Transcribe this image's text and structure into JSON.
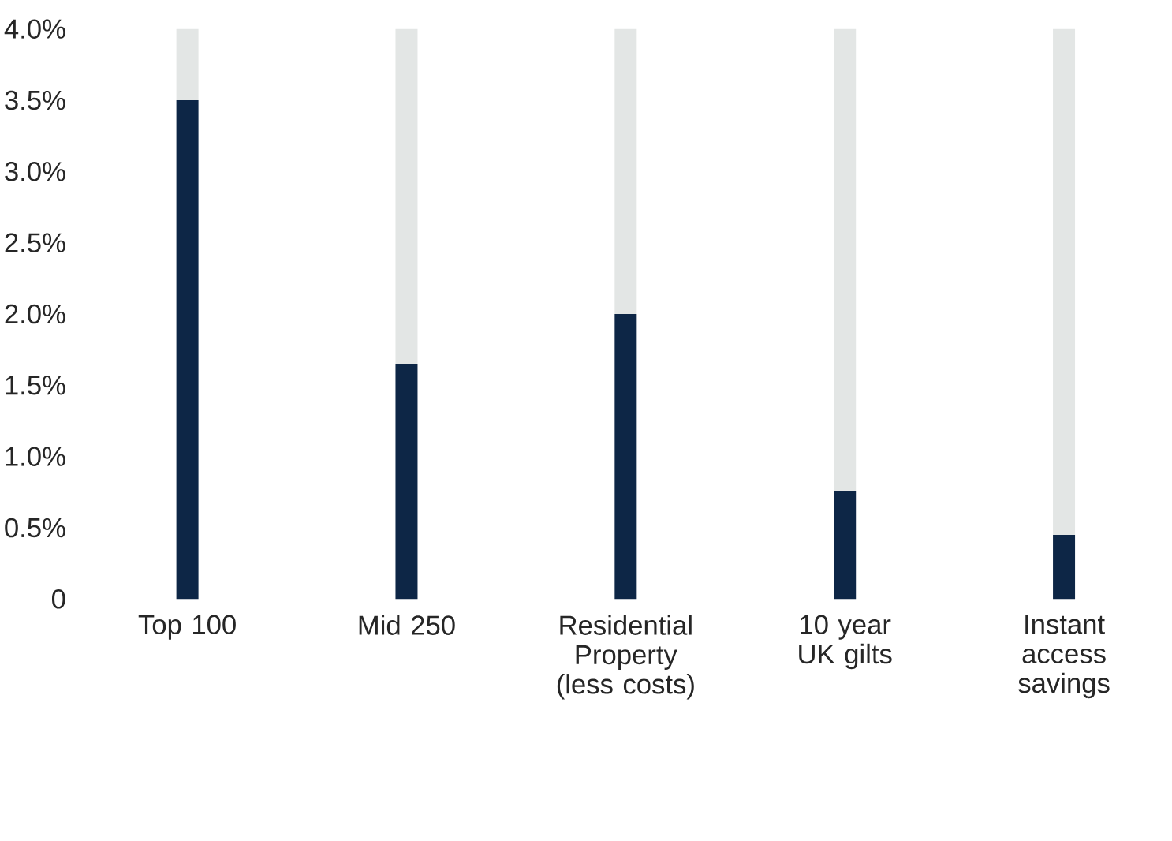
{
  "chart_data": {
    "type": "bar",
    "stacked": true,
    "categories": [
      "Top 100",
      "Mid 250",
      "Residential Property (less costs)",
      "10 year UK gilts",
      "Instant access savings"
    ],
    "series": [
      {
        "color": "#0d2646",
        "values": [
          3.5,
          1.65,
          2.0,
          0.76,
          0.45
        ]
      },
      {
        "color": "#e3e6e5",
        "values": [
          0.5,
          2.35,
          2.0,
          3.24,
          3.55
        ]
      }
    ],
    "ylim": [
      0,
      4.0
    ],
    "yticks": [
      {
        "value": 0,
        "label": "0"
      },
      {
        "value": 0.5,
        "label": "0.5%"
      },
      {
        "value": 1.0,
        "label": "1.0%"
      },
      {
        "value": 1.5,
        "label": "1.5%"
      },
      {
        "value": 2.0,
        "label": "2.0%"
      },
      {
        "value": 2.5,
        "label": "2.5%"
      },
      {
        "value": 3.0,
        "label": "3.0%"
      },
      {
        "value": 3.5,
        "label": "3.5%"
      },
      {
        "value": 4.0,
        "label": "4.0%"
      }
    ]
  }
}
